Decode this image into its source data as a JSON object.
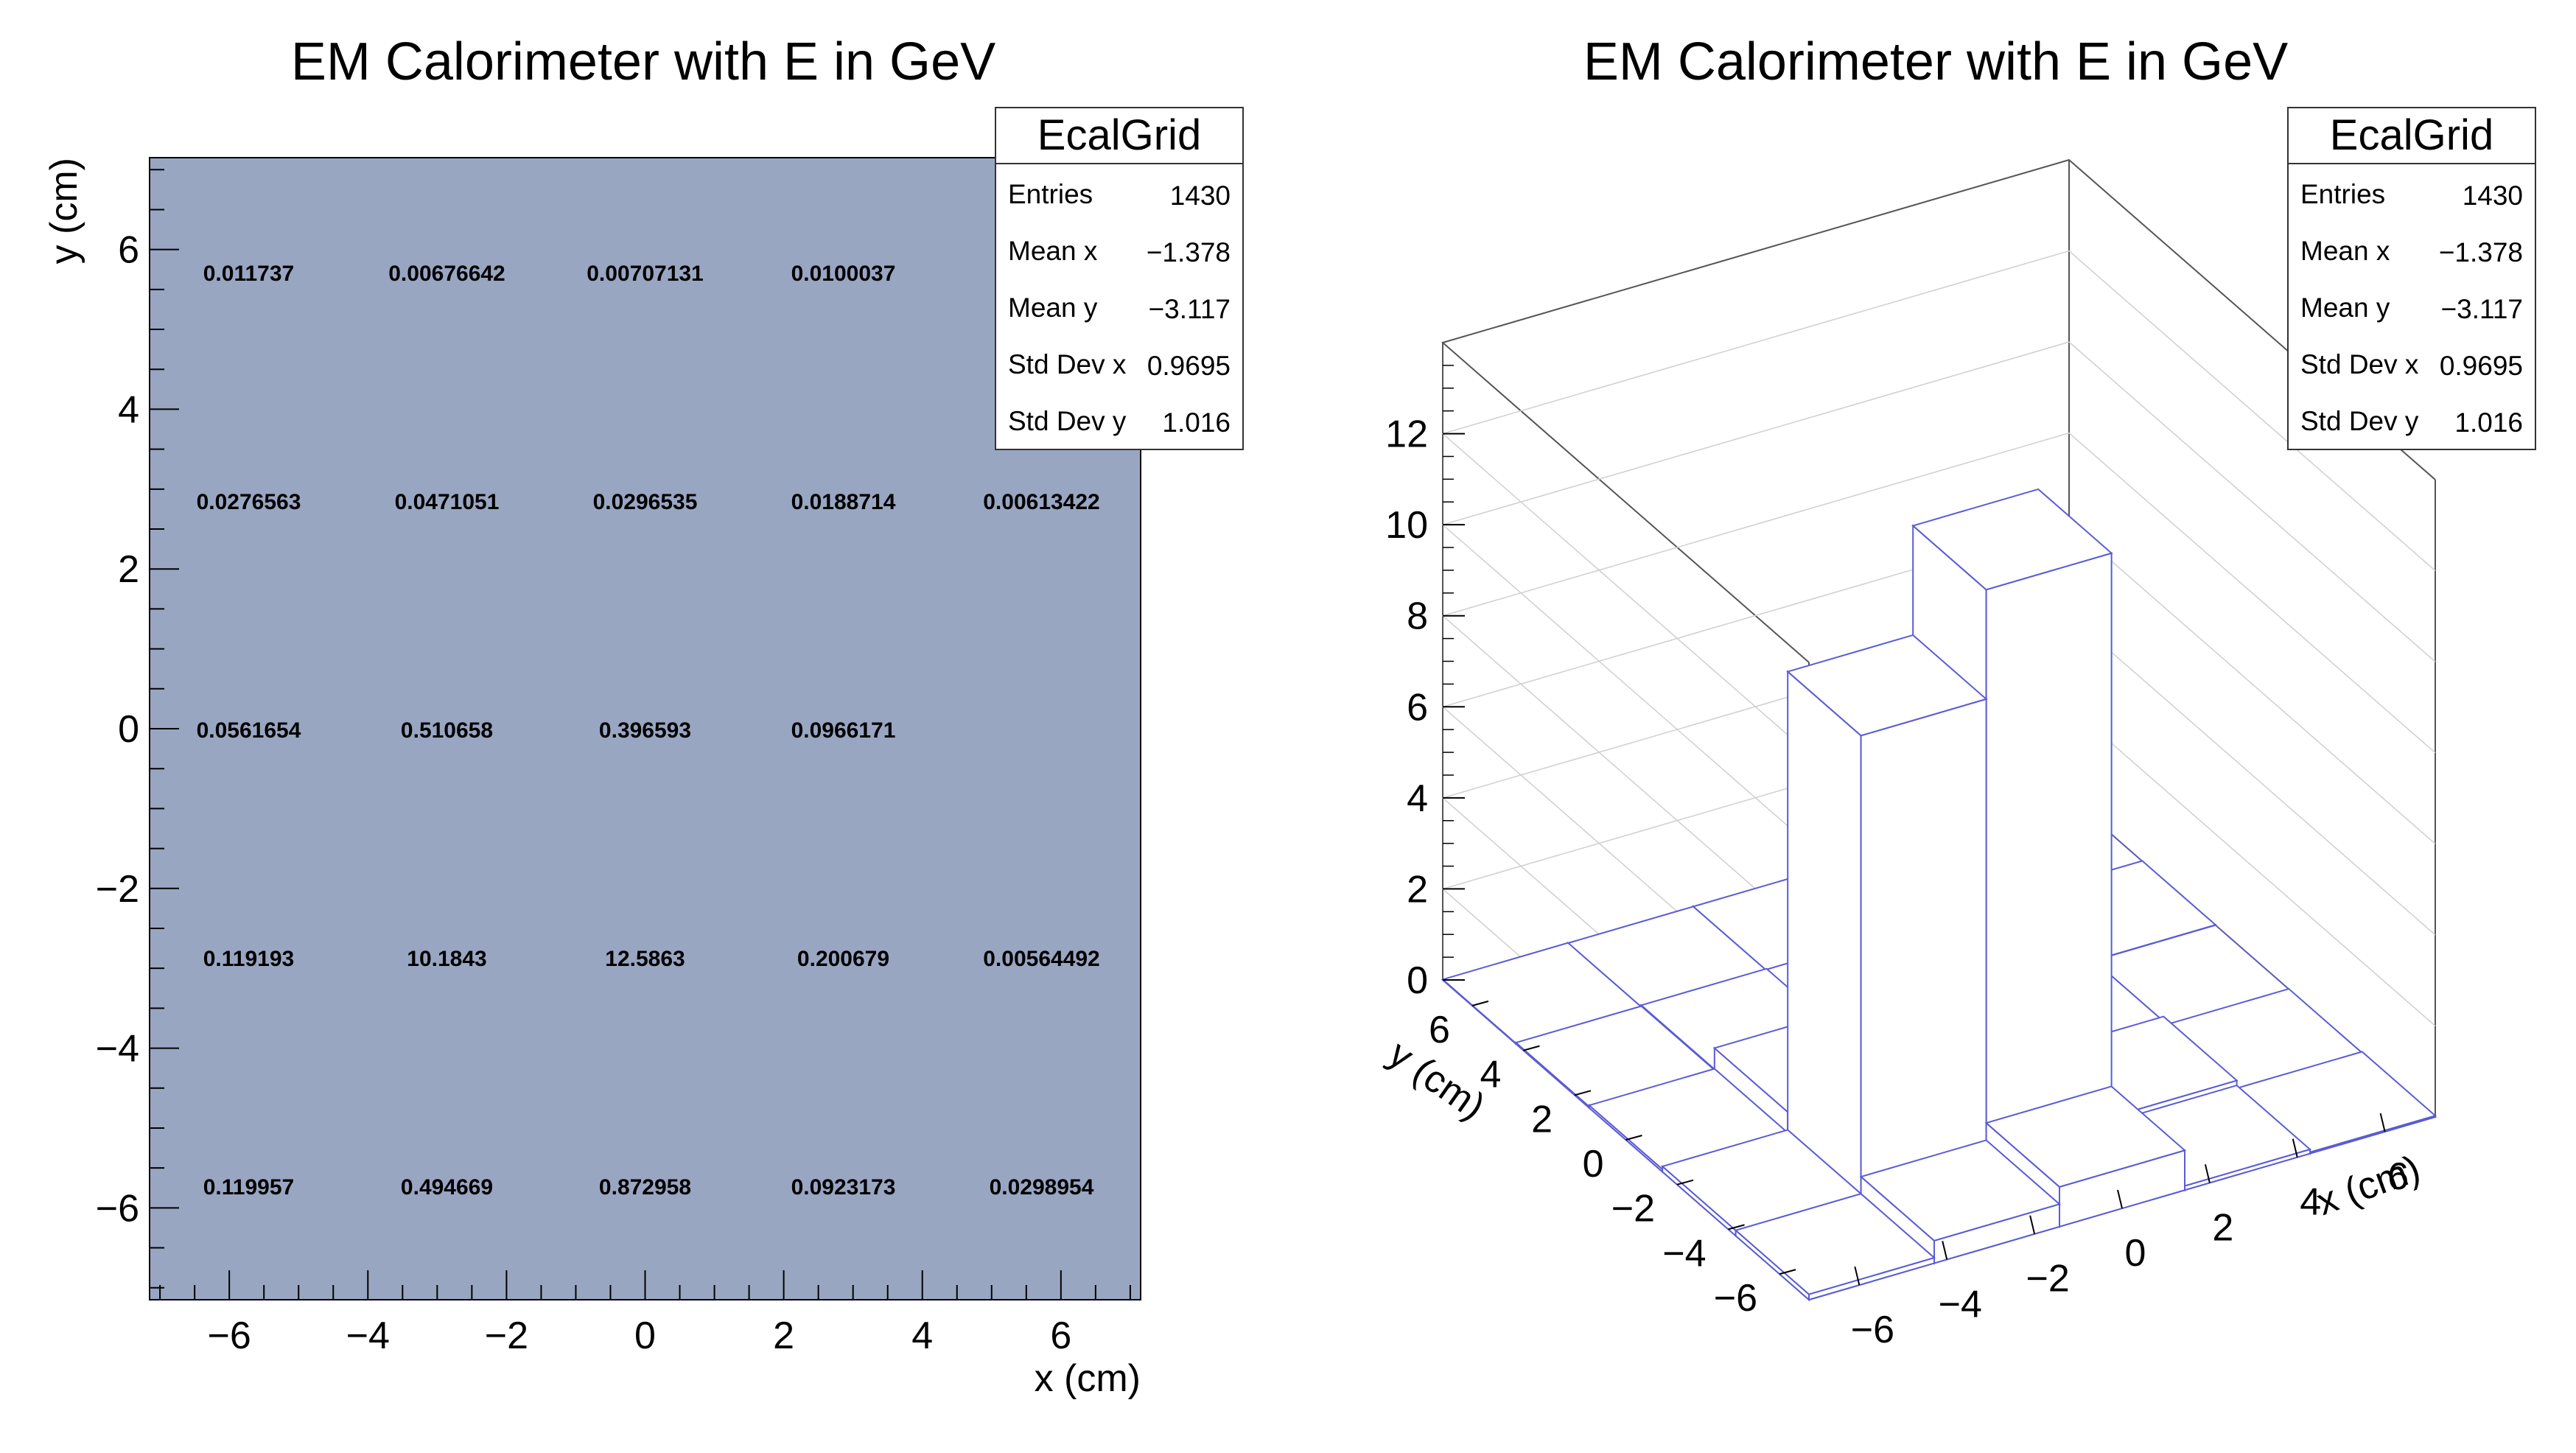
{
  "chart_data": [
    {
      "type": "heatmap",
      "title": "EM Calorimeter with E in GeV",
      "xlabel": "x (cm)",
      "ylabel": "y (cm)",
      "xlim": [
        -7.15,
        7.15
      ],
      "ylim": [
        -7.15,
        7.15
      ],
      "x_ticks": [
        "−6",
        "−4",
        "−2",
        "0",
        "2",
        "4",
        "6"
      ],
      "y_ticks": [
        "−6",
        "−4",
        "−2",
        "0",
        "2",
        "4",
        "6"
      ],
      "bin_edges": [
        -7.15,
        -4.29,
        -1.43,
        1.43,
        4.29,
        7.15
      ],
      "cells": [
        {
          "row": 0,
          "col": 0,
          "label": "0.011737",
          "value": 0.011737
        },
        {
          "row": 0,
          "col": 1,
          "label": "0.00676642",
          "value": 0.00676642
        },
        {
          "row": 0,
          "col": 2,
          "label": "0.00707131",
          "value": 0.00707131
        },
        {
          "row": 0,
          "col": 3,
          "label": "0.0100037",
          "value": 0.0100037
        },
        {
          "row": 0,
          "col": 4,
          "label": "",
          "value": null
        },
        {
          "row": 1,
          "col": 0,
          "label": "0.0276563",
          "value": 0.0276563
        },
        {
          "row": 1,
          "col": 1,
          "label": "0.0471051",
          "value": 0.0471051
        },
        {
          "row": 1,
          "col": 2,
          "label": "0.0296535",
          "value": 0.0296535
        },
        {
          "row": 1,
          "col": 3,
          "label": "0.0188714",
          "value": 0.0188714
        },
        {
          "row": 1,
          "col": 4,
          "label": "0.00613422",
          "value": 0.00613422
        },
        {
          "row": 2,
          "col": 0,
          "label": "0.0561654",
          "value": 0.0561654
        },
        {
          "row": 2,
          "col": 1,
          "label": "0.510658",
          "value": 0.510658
        },
        {
          "row": 2,
          "col": 2,
          "label": "0.396593",
          "value": 0.396593
        },
        {
          "row": 2,
          "col": 3,
          "label": "0.0966171",
          "value": 0.0966171
        },
        {
          "row": 2,
          "col": 4,
          "label": "",
          "value": 0
        },
        {
          "row": 3,
          "col": 0,
          "label": "0.119193",
          "value": 0.119193
        },
        {
          "row": 3,
          "col": 1,
          "label": "10.1843",
          "value": 10.1843
        },
        {
          "row": 3,
          "col": 2,
          "label": "12.5863",
          "value": 12.5863
        },
        {
          "row": 3,
          "col": 3,
          "label": "0.200679",
          "value": 0.200679
        },
        {
          "row": 3,
          "col": 4,
          "label": "0.00564492",
          "value": 0.00564492
        },
        {
          "row": 4,
          "col": 0,
          "label": "0.119957",
          "value": 0.119957
        },
        {
          "row": 4,
          "col": 1,
          "label": "0.494669",
          "value": 0.494669
        },
        {
          "row": 4,
          "col": 2,
          "label": "0.872958",
          "value": 0.872958
        },
        {
          "row": 4,
          "col": 3,
          "label": "0.0923173",
          "value": 0.0923173
        },
        {
          "row": 4,
          "col": 4,
          "label": "0.0298954",
          "value": 0.0298954
        }
      ],
      "colors": {
        "default": "#99a6c2",
        "empty": "#ffffff",
        "row3_col1": "#6b97a1",
        "row3_col2": "#819fbd",
        "row4_col2": "#9ca9c5"
      },
      "stats": {
        "title": "EcalGrid",
        "rows": [
          {
            "label": "Entries",
            "value": "1430"
          },
          {
            "label": "Mean x",
            "value": "−1.378"
          },
          {
            "label": "Mean y",
            "value": "−3.117"
          },
          {
            "label": "Std Dev x",
            "value": "0.9695"
          },
          {
            "label": "Std Dev y",
            "value": "1.016"
          }
        ]
      }
    },
    {
      "type": "bar",
      "subtype": "lego-3d",
      "title": "EM Calorimeter with E in GeV",
      "xlabel": "x (cm)",
      "ylabel": "y (cm)",
      "zlim": [
        0,
        14
      ],
      "z_ticks": [
        "0",
        "2",
        "4",
        "6",
        "8",
        "10",
        "12"
      ],
      "x_ticks": [
        "−6",
        "−4",
        "−2",
        "0",
        "2",
        "4",
        "6"
      ],
      "y_ticks": [
        "6",
        "4",
        "2",
        "0",
        "−2",
        "−4",
        "−6"
      ],
      "line_color": "#5b5bd6",
      "stats": {
        "title": "EcalGrid",
        "rows": [
          {
            "label": "Entries",
            "value": "1430"
          },
          {
            "label": "Mean x",
            "value": "−1.378"
          },
          {
            "label": "Mean y",
            "value": "−3.117"
          },
          {
            "label": "Std Dev x",
            "value": "0.9695"
          },
          {
            "label": "Std Dev y",
            "value": "1.016"
          }
        ]
      }
    }
  ]
}
